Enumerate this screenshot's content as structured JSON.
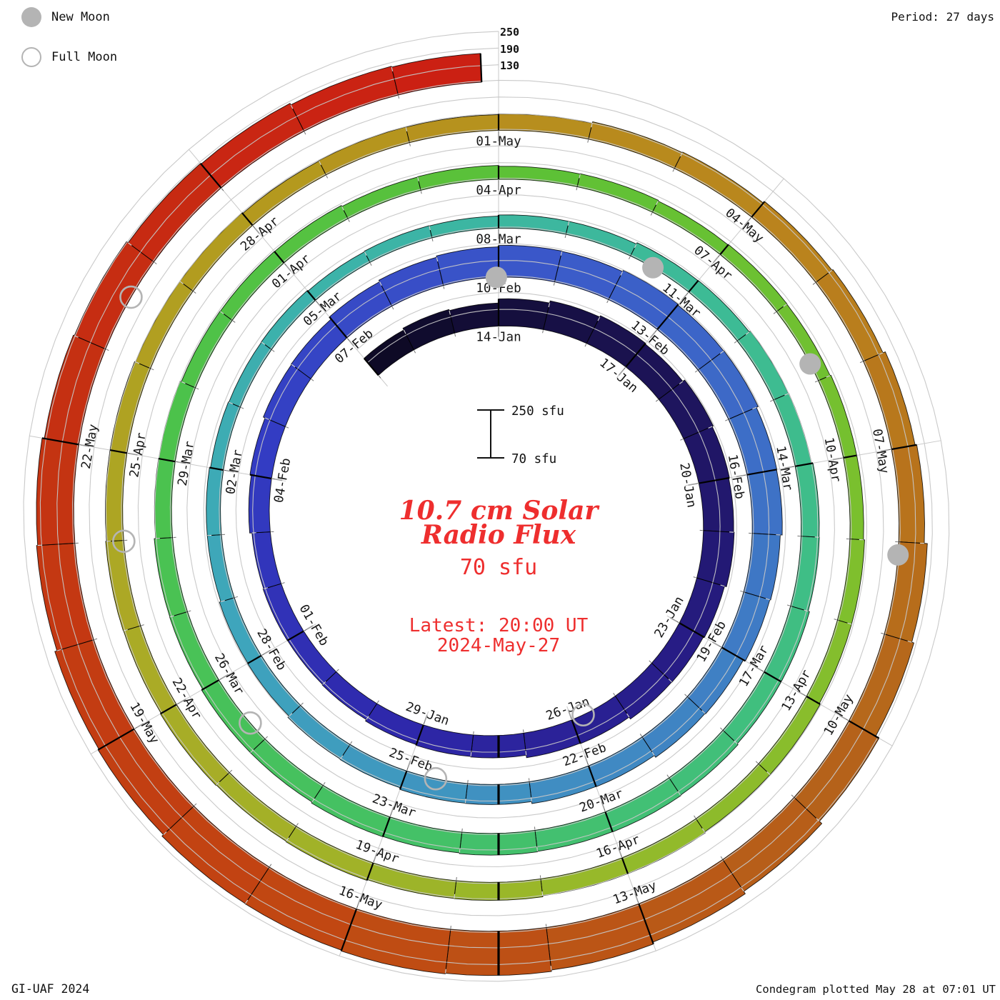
{
  "header": {
    "period_label": "Period: 27 days"
  },
  "legend": {
    "new_moon_label": "New Moon",
    "full_moon_label": "Full Moon",
    "marker_color": "#b4b4b4"
  },
  "footer": {
    "credit": "GI-UAF 2024",
    "plotted": "Condegram plotted May 28 at 07:01 UT"
  },
  "center": {
    "title_line1": "10.7 cm Solar",
    "title_line2": "Radio Flux",
    "title_color": "#ee2e2e",
    "baseline_label": "70 sfu",
    "latest_line1": "Latest: 20:00 UT",
    "latest_line2": "2024-May-27",
    "scale_top_label": "250 sfu",
    "scale_bottom_label": "70 sfu"
  },
  "radial_axis": {
    "labels": [
      "250",
      "190",
      "130"
    ],
    "values": [
      250,
      190,
      130
    ]
  },
  "chart_data": {
    "type": "bar",
    "layout": "polar-spiral condegram, clockwise from 12 o'clock, one rotation = 27 days, bars radiate outward from a 70 sfu baseline spiral",
    "title": "10.7 cm Solar Radio Flux",
    "start_date": "2024-01-11",
    "end_date": "2024-05-27",
    "last_day_fraction": 0.833,
    "days_per_rotation": 27,
    "baseline_sfu": 70,
    "max_sfu": 250,
    "grid_levels_sfu": [
      130,
      190,
      250
    ],
    "tick_step_days": 3,
    "tick_labels": [
      "14-Jan",
      "17-Jan",
      "20-Jan",
      "23-Jan",
      "26-Jan",
      "29-Jan",
      "01-Feb",
      "04-Feb",
      "07-Feb",
      "10-Feb",
      "13-Feb",
      "16-Feb",
      "19-Feb",
      "22-Feb",
      "25-Feb",
      "28-Feb",
      "02-Mar",
      "05-Mar",
      "08-Mar",
      "11-Mar",
      "14-Mar",
      "17-Mar",
      "20-Mar",
      "23-Mar",
      "26-Mar",
      "29-Mar",
      "01-Apr",
      "04-Apr",
      "07-Apr",
      "10-Apr",
      "13-Apr",
      "16-Apr",
      "19-Apr",
      "22-Apr",
      "25-Apr",
      "28-Apr",
      "01-May",
      "04-May",
      "07-May",
      "10-May",
      "13-May",
      "16-May",
      "19-May",
      "22-May"
    ],
    "daily_flux_sfu": [
      150,
      157,
      153,
      168,
      176,
      181,
      178,
      186,
      182,
      179,
      181,
      174,
      170,
      169,
      161,
      159,
      150,
      148,
      145,
      139,
      137,
      138,
      136,
      144,
      149,
      156,
      158,
      168,
      174,
      179,
      184,
      183,
      188,
      185,
      186,
      179,
      178,
      171,
      168,
      160,
      158,
      150,
      149,
      142,
      141,
      135,
      133,
      127,
      126,
      121,
      121,
      117,
      115,
      116,
      113,
      115,
      114,
      118,
      118,
      123,
      124,
      129,
      130,
      135,
      136,
      141,
      141,
      145,
      147,
      146,
      148,
      145,
      146,
      142,
      142,
      137,
      136,
      131,
      130,
      125,
      124,
      123,
      119,
      120,
      117,
      118,
      115,
      117,
      116,
      119,
      119,
      123,
      123,
      127,
      127,
      131,
      131,
      135,
      134,
      137,
      135,
      137,
      134,
      135,
      132,
      132,
      129,
      129,
      126,
      128,
      127,
      129,
      134,
      136,
      143,
      147,
      156,
      162,
      173,
      181,
      195,
      207,
      217,
      224,
      229,
      231,
      228,
      227,
      220,
      216,
      208,
      204,
      196,
      192,
      185,
      182,
      176,
      173
    ],
    "colormap_stops": [
      [
        0,
        "#0e0a26"
      ],
      [
        6,
        "#1c1356"
      ],
      [
        12,
        "#271c85"
      ],
      [
        18,
        "#2e28ab"
      ],
      [
        24,
        "#333cc3"
      ],
      [
        30,
        "#3a57c9"
      ],
      [
        36,
        "#3e72c6"
      ],
      [
        42,
        "#408dc2"
      ],
      [
        48,
        "#3ea5bc"
      ],
      [
        54,
        "#3cb3a9"
      ],
      [
        60,
        "#3dbb95"
      ],
      [
        66,
        "#40bf7e"
      ],
      [
        72,
        "#45c162"
      ],
      [
        78,
        "#4cc24b"
      ],
      [
        84,
        "#5dc136"
      ],
      [
        90,
        "#7ac02e"
      ],
      [
        96,
        "#97b92a"
      ],
      [
        102,
        "#aaab26"
      ],
      [
        108,
        "#b4991e"
      ],
      [
        114,
        "#ba831d"
      ],
      [
        120,
        "#b5621a"
      ],
      [
        126,
        "#c14712"
      ],
      [
        132,
        "#c53012"
      ],
      [
        137,
        "#cb2013"
      ]
    ],
    "new_moons": [
      {
        "date": "2024-02-09",
        "day_index": 29.96
      },
      {
        "date": "2024-03-10",
        "day_index": 59.37
      },
      {
        "date": "2024-04-08",
        "day_index": 88.77
      },
      {
        "date": "2024-05-08",
        "day_index": 118.14
      }
    ],
    "full_moons": [
      {
        "date": "2024-01-25",
        "day_index": 14.75
      },
      {
        "date": "2024-02-24",
        "day_index": 44.52
      },
      {
        "date": "2024-03-25",
        "day_index": 74.29
      },
      {
        "date": "2024-04-23",
        "day_index": 103.99
      },
      {
        "date": "2024-05-23",
        "day_index": 133.58
      }
    ]
  }
}
